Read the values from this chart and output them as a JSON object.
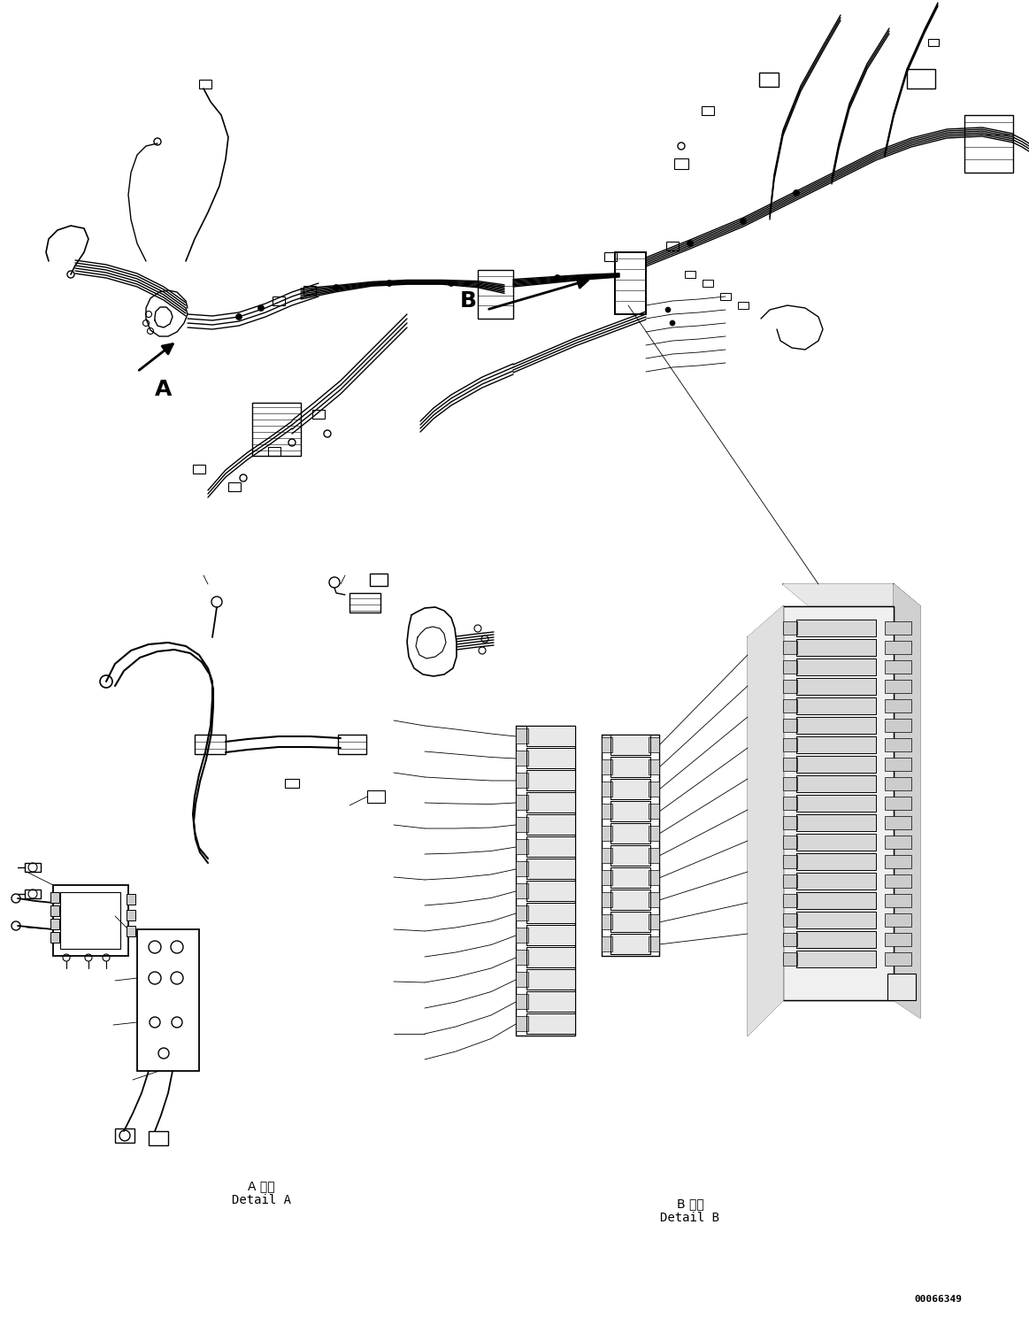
{
  "background_color": "#ffffff",
  "figure_width": 11.63,
  "figure_height": 14.88,
  "dpi": 100,
  "part_number": "00066349",
  "detail_a_label_jp": "A 詳細",
  "detail_a_label_en": "Detail A",
  "detail_b_label_jp": "B 詳細",
  "detail_b_label_en": "Detail B",
  "label_a": "A",
  "label_b": "B",
  "line_color": "#000000",
  "lw": 1.0,
  "tlw": 0.6,
  "thw": 1.4,
  "fs_label": 18,
  "fs_detail": 10,
  "fs_part": 8
}
